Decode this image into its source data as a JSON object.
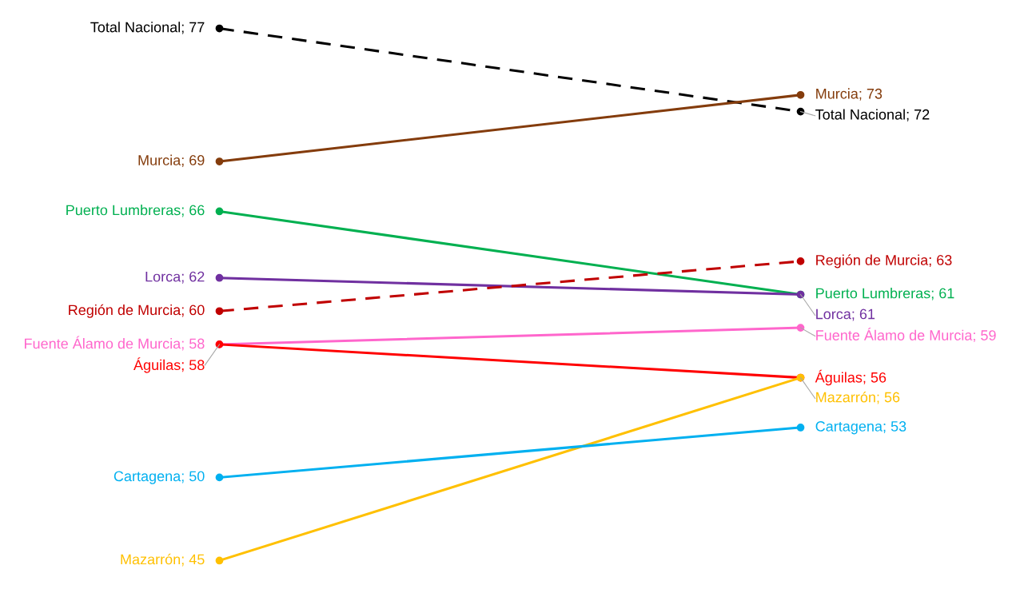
{
  "chart_data": {
    "type": "line",
    "categories": [
      null,
      null
    ],
    "marker": "circle",
    "series": [
      {
        "color": "#000000",
        "line_style": "dashed",
        "values": [
          77,
          72
        ],
        "value_labels": [
          "Total Nacional; 77",
          "Total Nacional; 72"
        ]
      },
      {
        "color": "#843c0c",
        "line_style": "solid",
        "values": [
          69,
          73
        ],
        "value_labels": [
          "Murcia; 69",
          "Murcia; 73"
        ]
      },
      {
        "color": "#00b050",
        "line_style": "solid",
        "values": [
          66,
          61
        ],
        "value_labels": [
          "Puerto Lumbreras; 66",
          "Puerto Lumbreras; 61"
        ]
      },
      {
        "color": "#7030a0",
        "line_style": "solid",
        "values": [
          62,
          61
        ],
        "value_labels": [
          "Lorca; 62",
          "Lorca; 61"
        ]
      },
      {
        "color": "#c00000",
        "line_style": "dashed",
        "values": [
          60,
          63
        ],
        "value_labels": [
          "Región de Murcia; 60",
          "Región de Murcia; 63"
        ]
      },
      {
        "color": "#ff66cc",
        "line_style": "solid",
        "values": [
          58,
          59
        ],
        "value_labels": [
          "Fuente Álamo de Murcia; 58",
          "Fuente Álamo de Murcia; 59"
        ]
      },
      {
        "color": "#ff0000",
        "line_style": "solid",
        "values": [
          58,
          56
        ],
        "value_labels": [
          "Águilas; 58",
          "Águilas; 56"
        ]
      },
      {
        "color": "#ffc000",
        "line_style": "solid",
        "values": [
          45,
          56
        ],
        "value_labels": [
          "Mazarrón; 45",
          "Mazarrón; 56"
        ]
      },
      {
        "color": "#00b0f0",
        "line_style": "solid",
        "values": [
          50,
          53
        ],
        "value_labels": [
          "Cartagena; 50",
          "Cartagena; 53"
        ]
      }
    ]
  }
}
